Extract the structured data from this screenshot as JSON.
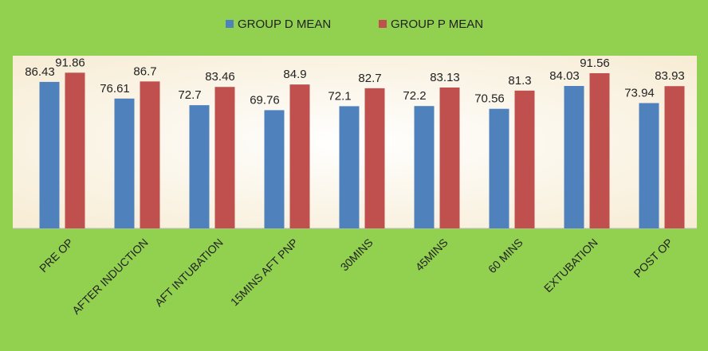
{
  "chart_data": {
    "type": "bar",
    "categories": [
      "PRE OP",
      "AFTER INDUCTION",
      "AFT INTUBATION",
      "15MINS AFT PNP",
      "30MINS",
      "45MINS",
      "60 MINS",
      "EXTUBATION",
      "POST OP"
    ],
    "series": [
      {
        "name": "GROUP D MEAN",
        "color": "#4f81bd",
        "values": [
          86.43,
          76.61,
          72.7,
          69.76,
          72.1,
          72.2,
          70.56,
          84.03,
          73.94
        ]
      },
      {
        "name": "GROUP P MEAN",
        "color": "#c0504d",
        "values": [
          91.86,
          86.7,
          83.46,
          84.9,
          82.7,
          83.13,
          81.3,
          91.56,
          83.93
        ]
      }
    ],
    "ylim": [
      0,
      100
    ],
    "legend": "top"
  }
}
